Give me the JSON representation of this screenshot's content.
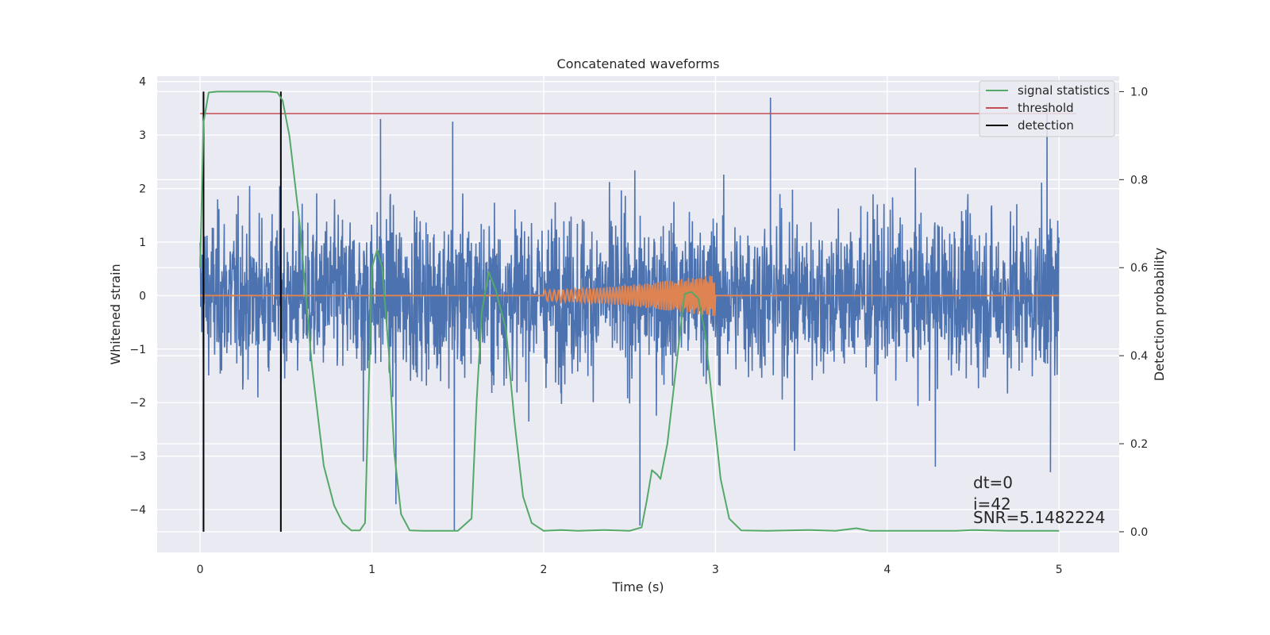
{
  "chart_data": {
    "type": "line",
    "title": "Concatenated waveforms",
    "xlabel": "Time (s)",
    "ylabel": "Whitened strain",
    "y2label": "Detection probability",
    "xlim": [
      -0.25,
      5.35
    ],
    "ylim": [
      -4.8,
      4.1
    ],
    "y2lim": [
      -0.047,
      1.035
    ],
    "xticks": [
      "0",
      "1",
      "2",
      "3",
      "4",
      "5"
    ],
    "yticks": [
      "4",
      "3",
      "2",
      "1",
      "0",
      "−1",
      "−2",
      "−3",
      "−4"
    ],
    "y2ticks": [
      "1.0",
      "0.8",
      "0.6",
      "0.4",
      "0.2",
      "0.0"
    ],
    "grid": true,
    "legend_position": "top-right",
    "series": [
      {
        "name": "",
        "axis": "left",
        "color": "#4c72b0",
        "description_values": "whitened strain noise, approx ±2.5 typical, peaks to +3.7 and −4.4",
        "x_range": [
          0,
          5
        ],
        "spikes": [
          [
            0.95,
            -3.1
          ],
          [
            1.05,
            3.3
          ],
          [
            1.14,
            -3.9
          ],
          [
            1.47,
            3.25
          ],
          [
            1.48,
            -4.4
          ],
          [
            2.56,
            -4.3
          ],
          [
            3.32,
            3.7
          ],
          [
            3.46,
            -2.9
          ],
          [
            4.28,
            -3.2
          ],
          [
            4.93,
            3.6
          ],
          [
            4.95,
            -3.3
          ]
        ]
      },
      {
        "name": "",
        "axis": "left",
        "color": "#dd8452",
        "x_range": [
          0,
          5
        ],
        "chirp_start": 2.0,
        "chirp_end": 3.0,
        "chirp_amplitude": [
          0.1,
          0.4
        ]
      },
      {
        "name": "signal statistics",
        "axis": "right",
        "color": "#55a868",
        "x": [
          0.0,
          0.02,
          0.05,
          0.1,
          0.2,
          0.3,
          0.4,
          0.45,
          0.48,
          0.52,
          0.58,
          0.65,
          0.72,
          0.78,
          0.83,
          0.88,
          0.93,
          0.96,
          0.98,
          1.0,
          1.03,
          1.06,
          1.1,
          1.13,
          1.17,
          1.22,
          1.3,
          1.4,
          1.5,
          1.58,
          1.61,
          1.64,
          1.68,
          1.72,
          1.78,
          1.83,
          1.88,
          1.93,
          2.0,
          2.1,
          2.2,
          2.35,
          2.5,
          2.57,
          2.6,
          2.63,
          2.66,
          2.68,
          2.72,
          2.77,
          2.82,
          2.86,
          2.9,
          2.94,
          2.98,
          3.03,
          3.08,
          3.15,
          3.3,
          3.55,
          3.7,
          3.82,
          3.9,
          4.1,
          4.4,
          4.5,
          4.7,
          5.0
        ],
        "values": [
          0.6,
          0.93,
          0.998,
          1.0,
          1.0,
          1.0,
          1.0,
          0.998,
          0.98,
          0.9,
          0.7,
          0.38,
          0.15,
          0.06,
          0.02,
          0.003,
          0.003,
          0.02,
          0.3,
          0.6,
          0.64,
          0.6,
          0.4,
          0.18,
          0.04,
          0.003,
          0.002,
          0.002,
          0.002,
          0.03,
          0.3,
          0.5,
          0.59,
          0.55,
          0.46,
          0.25,
          0.08,
          0.02,
          0.002,
          0.004,
          0.002,
          0.004,
          0.002,
          0.01,
          0.07,
          0.14,
          0.13,
          0.12,
          0.2,
          0.37,
          0.54,
          0.545,
          0.53,
          0.45,
          0.3,
          0.12,
          0.03,
          0.003,
          0.002,
          0.004,
          0.002,
          0.008,
          0.002,
          0.002,
          0.002,
          0.004,
          0.002,
          0.002
        ]
      },
      {
        "name": "threshold",
        "axis": "right",
        "color": "#c44e52",
        "x": [
          0,
          5.1
        ],
        "values": [
          0.95,
          0.95
        ]
      },
      {
        "name": "detection",
        "axis": "right",
        "color": "#000000",
        "vlines_x": [
          0.02,
          0.47
        ],
        "y_range": [
          0.0,
          1.0
        ]
      }
    ],
    "annotations": [
      "dt=0",
      "i=42",
      "SNR=5.1482224"
    ]
  }
}
